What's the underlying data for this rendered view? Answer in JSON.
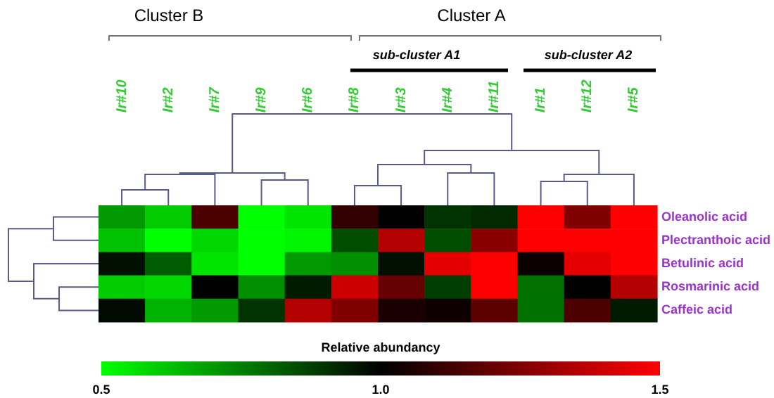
{
  "chart_data": {
    "type": "heatmap",
    "categories": [
      "Ir#10",
      "Ir#2",
      "Ir#7",
      "Ir#9",
      "Ir#6",
      "Ir#8",
      "Ir#3",
      "Ir#4",
      "Ir#11",
      "Ir#1",
      "Ir#12",
      "Ir#5"
    ],
    "y_categories": [
      null,
      null,
      null,
      null,
      null
    ],
    "y2_categories": [
      "Oleanolic acid",
      "Plectranthoic acid",
      "Betulinic acid",
      "Rosmarinic acid",
      "Caffeic acid"
    ],
    "cells": [
      [
        0.7,
        0.6,
        1.15,
        0.5,
        0.55,
        1.1,
        1.0,
        0.9,
        0.92,
        1.5,
        1.25,
        1.5
      ],
      [
        0.62,
        0.5,
        0.58,
        0.5,
        0.52,
        0.85,
        1.35,
        0.85,
        1.27,
        1.5,
        1.5,
        1.5
      ],
      [
        0.97,
        0.82,
        0.55,
        0.5,
        0.7,
        0.72,
        0.97,
        1.45,
        1.5,
        1.02,
        1.45,
        1.5
      ],
      [
        0.6,
        0.58,
        1.0,
        0.72,
        0.95,
        1.4,
        1.2,
        0.88,
        1.5,
        0.78,
        1.0,
        1.35
      ],
      [
        0.98,
        0.65,
        0.7,
        0.9,
        1.35,
        1.25,
        1.05,
        1.03,
        1.18,
        0.78,
        1.15,
        0.95
      ]
    ],
    "clabel": "Relative abundancy",
    "clim": [
      0.5,
      1.5
    ],
    "cticks": [
      {
        "value": 0.5,
        "label": "0.5"
      },
      {
        "value": 1,
        "label": "1.0"
      },
      {
        "value": 1.5,
        "label": "1.5"
      }
    ],
    "annotations": [
      "Cluster B",
      "Cluster A",
      "sub-cluster A1",
      "sub-cluster A2"
    ]
  }
}
